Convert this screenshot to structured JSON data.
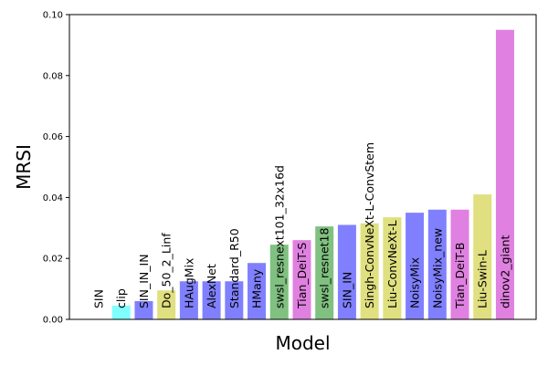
{
  "chart_data": {
    "type": "bar",
    "title": "",
    "xlabel": "Model",
    "ylabel": "MRSI",
    "ylim": [
      0,
      0.1
    ],
    "yticks": [
      "0.00",
      "0.02",
      "0.04",
      "0.06",
      "0.08",
      "0.10"
    ],
    "ytick_values": [
      0,
      0.02,
      0.04,
      0.06,
      0.08,
      0.1
    ],
    "grid": false,
    "legend": "none",
    "categories": [
      "SIN",
      "clip",
      "SIN_IN_IN",
      "Do_50_2_Linf",
      "HAugMix",
      "AlexNet",
      "Standard_R50",
      "HMany",
      "swsl_resnext101_32x16d",
      "Tian_DeiT-S",
      "swsl_resnet18",
      "SIN_IN",
      "Singh-ConvNeXt-L-ConvStem",
      "Liu-ConvNeXt-L",
      "NoisyMix",
      "NoisyMix_new",
      "Tian_DeiT-B",
      "Liu-Swin-L",
      "dinov2_giant"
    ],
    "values": [
      0.0,
      0.0045,
      0.006,
      0.0095,
      0.0125,
      0.0125,
      0.0125,
      0.0185,
      0.0245,
      0.026,
      0.0305,
      0.031,
      0.0315,
      0.0335,
      0.035,
      0.036,
      0.036,
      0.041,
      0.095
    ],
    "colors": [
      "#8080ff",
      "#80ffff",
      "#8080ff",
      "#e0e080",
      "#8080ff",
      "#8080ff",
      "#8080ff",
      "#8080ff",
      "#80c080",
      "#e080e0",
      "#80c080",
      "#8080ff",
      "#e0e080",
      "#e0e080",
      "#8080ff",
      "#8080ff",
      "#e080e0",
      "#e0e080",
      "#e080e0"
    ]
  }
}
